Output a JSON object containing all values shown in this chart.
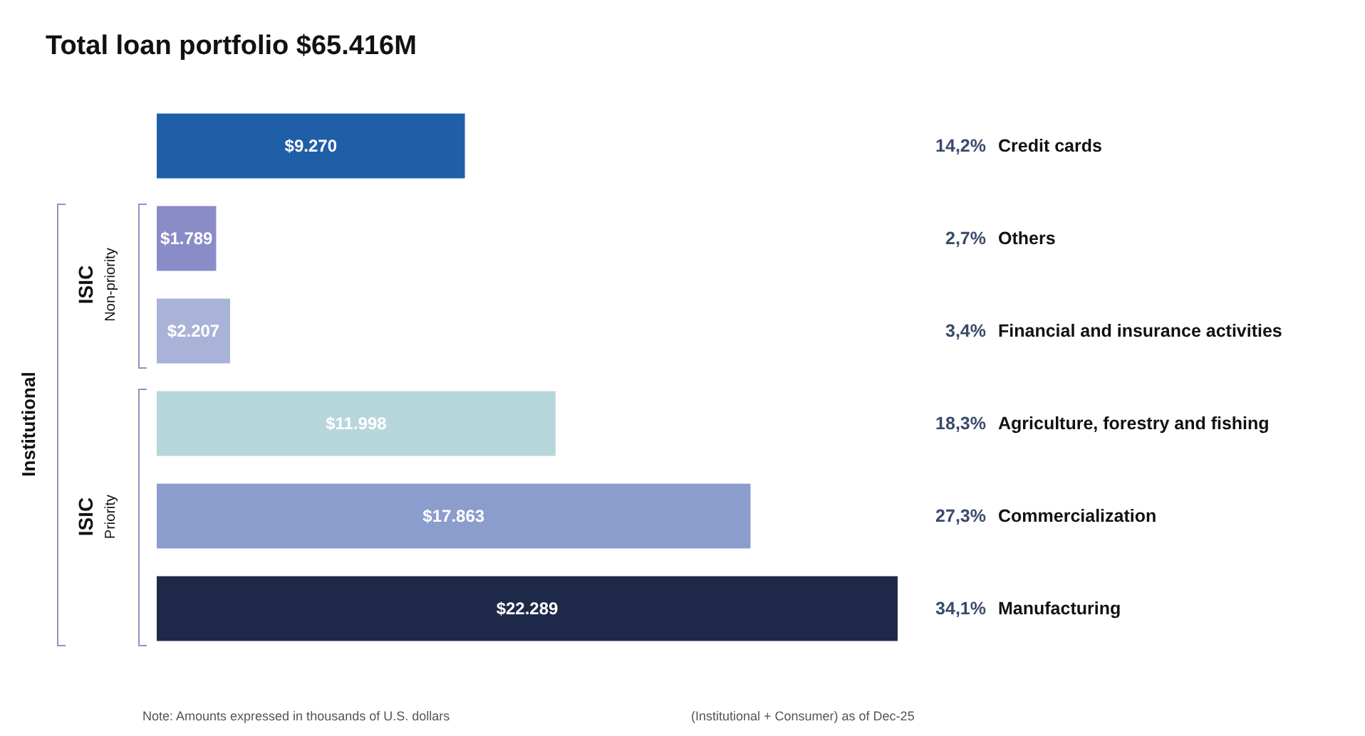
{
  "chart_data": {
    "type": "bar",
    "orientation": "horizontal",
    "title": "Total loan portfolio $65.416M",
    "categories": [
      "Credit cards",
      "Others",
      "Financial and insurance activities",
      "Agriculture, forestry and fishing",
      "Commercialization",
      "Manufacturing"
    ],
    "values": [
      9270,
      1789,
      2207,
      11998,
      17863,
      22289
    ],
    "value_labels": [
      "$9.270",
      "$1.789",
      "$2.207",
      "$11.998",
      "$17.863",
      "$22.289"
    ],
    "colors": [
      "#1f5fa8",
      "#8a8cc8",
      "#a9b3d8",
      "#b7d6da",
      "#8b9dcc",
      "#1f2a4a"
    ],
    "annotations": [
      "14,2%",
      "2,7%",
      "3,4%",
      "18,3%",
      "27,3%",
      "34,1%",
      "Institutional",
      "ISIC",
      "Non-priority",
      "ISIC",
      "Priority",
      "Note: Amounts expressed in thousands of U.S. dollars",
      "(Institutional + Consumer) as of Dec-25"
    ]
  }
}
